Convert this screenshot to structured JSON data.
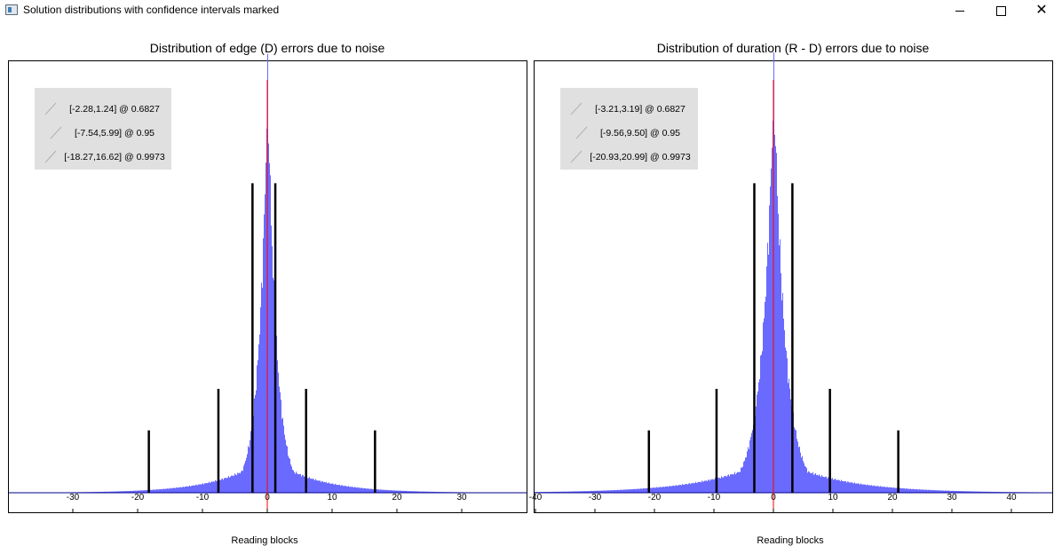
{
  "window": {
    "title": "Solution distributions with confidence intervals marked",
    "minimize_icon": "minimize-icon",
    "maximize_icon": "maximize-icon",
    "close_icon": "close-icon"
  },
  "colors": {
    "histogram": "#6a6aff",
    "center_line": "#ff0000",
    "interval_lines": "#000000",
    "legend_bg": "#e0e0e0",
    "baseline": "#00008b"
  },
  "chart_data": [
    {
      "type": "bar",
      "title": "Distribution of edge (D) errors due to noise",
      "xlabel": "Reading blocks",
      "ylabel": "",
      "xlim": [
        -40,
        40
      ],
      "xticks": [
        -30,
        -20,
        -10,
        0,
        10,
        20,
        30
      ],
      "grid": false,
      "legend_position": "top-left",
      "center_line_x": 0,
      "distribution_peak_x": 0,
      "intervals": [
        {
          "label": "[-2.28,1.24] @ 0.6827",
          "low": -2.28,
          "high": 1.24,
          "confidence": 0.6827,
          "marker_height": 0.75
        },
        {
          "label": "[-7.54,5.99] @ 0.95",
          "low": -7.54,
          "high": 5.99,
          "confidence": 0.95,
          "marker_height": 0.25
        },
        {
          "label": "[-18.27,16.62] @ 0.9973",
          "low": -18.27,
          "high": 16.62,
          "confidence": 0.9973,
          "marker_height": 0.15
        }
      ]
    },
    {
      "type": "bar",
      "title": "Distribution of duration (R - D) errors due to noise",
      "xlabel": "Reading blocks",
      "ylabel": "",
      "xlim": [
        -40,
        47
      ],
      "xticks": [
        -40,
        -30,
        -20,
        -10,
        0,
        10,
        20,
        30,
        40
      ],
      "grid": false,
      "legend_position": "top-left",
      "center_line_x": 0,
      "distribution_peak_x": 0,
      "intervals": [
        {
          "label": "[-3.21,3.19] @ 0.6827",
          "low": -3.21,
          "high": 3.19,
          "confidence": 0.6827,
          "marker_height": 0.75
        },
        {
          "label": "[-9.56,9.50] @ 0.95",
          "low": -9.56,
          "high": 9.5,
          "confidence": 0.95,
          "marker_height": 0.25
        },
        {
          "label": "[-20.93,20.99] @ 0.9973",
          "low": -20.93,
          "high": 20.99,
          "confidence": 0.9973,
          "marker_height": 0.15
        }
      ]
    }
  ]
}
